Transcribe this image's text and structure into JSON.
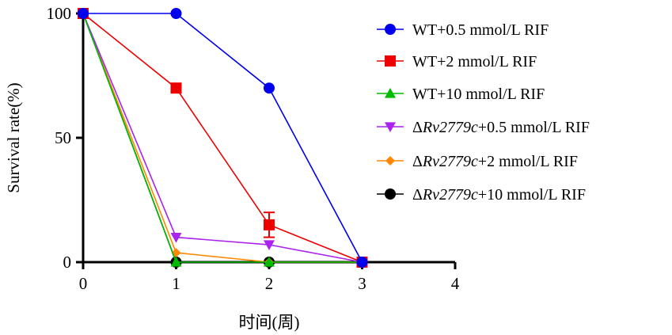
{
  "chart_data": {
    "type": "line",
    "title": "",
    "xlabel": "时间(周)",
    "ylabel": "Survival rate(%)",
    "xlim": [
      0,
      4
    ],
    "ylim": [
      0,
      100
    ],
    "xticks": [
      "0",
      "1",
      "2",
      "3",
      "4"
    ],
    "yticks": [
      "0",
      "50",
      "100"
    ],
    "x": [
      0,
      1,
      2,
      3
    ],
    "legend_position": "right",
    "series": [
      {
        "name": "WT+0.5 mmol/L RIF",
        "label_pre": "WT+0.5 mmol/L RIF",
        "label_it": "",
        "label_post": "",
        "color": "#0000ee",
        "marker": "circle",
        "values": [
          100,
          100,
          70,
          0
        ]
      },
      {
        "name": "WT+2 mmol/L RIF",
        "label_pre": "WT+2 mmol/L RIF",
        "label_it": "",
        "label_post": "",
        "color": "#ee0000",
        "marker": "square",
        "values": [
          100,
          70,
          15,
          0
        ],
        "error": [
          0,
          0,
          5,
          0
        ]
      },
      {
        "name": "WT+10 mmol/L RIF",
        "label_pre": "WT+10 mmol/L RIF",
        "label_it": "",
        "label_post": "",
        "color": "#00bb00",
        "marker": "triangle-up",
        "values": [
          100,
          0,
          0,
          0
        ]
      },
      {
        "name": "ΔRv2779c+0.5 mmol/L RIF",
        "label_pre": "Δ",
        "label_it": "Rv2779c",
        "label_post": "+0.5 mmol/L RIF",
        "color": "#aa22ee",
        "marker": "triangle-down",
        "values": [
          100,
          10,
          7,
          0
        ]
      },
      {
        "name": "ΔRv2779c+2 mmol/L RIF",
        "label_pre": "Δ",
        "label_it": "Rv2779c",
        "label_post": "+2 mmol/L RIF",
        "color": "#ff8800",
        "marker": "diamond",
        "values": [
          100,
          3.8,
          0,
          0
        ]
      },
      {
        "name": "ΔRv2779c+10 mmol/L RIF",
        "label_pre": "Δ",
        "label_it": "Rv2779c",
        "label_post": "+10 mmol/L RIF",
        "color": "#000000",
        "marker": "circle",
        "values": [
          100,
          0,
          0,
          0
        ]
      }
    ]
  }
}
